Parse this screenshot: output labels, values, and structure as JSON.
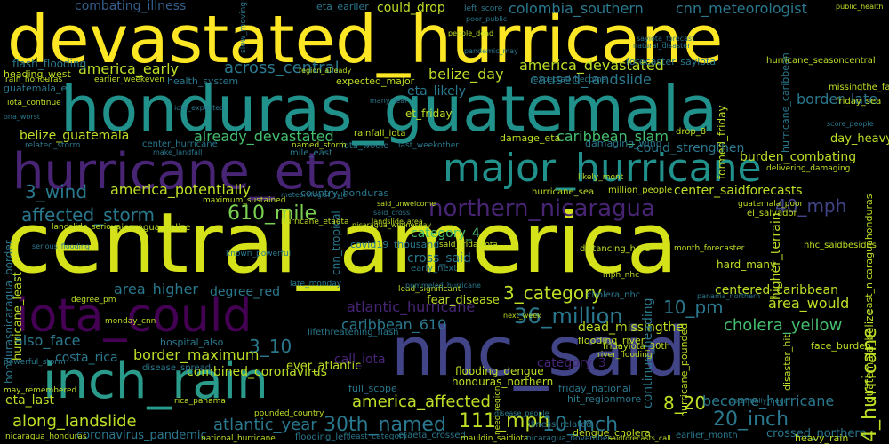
{
  "colors": {
    "background": "#000000",
    "yellow": "#fde725",
    "lime": "#bddf26",
    "green": "#7ad151",
    "mint": "#44bf70",
    "teal": "#22a884",
    "cyan": "#21918c",
    "blue": "#2a788e",
    "indigo": "#355f8d",
    "slate": "#414487",
    "purple": "#482475",
    "violet": "#440154"
  },
  "words": {
    "central_america": "central_america",
    "devastated_hurricane": "devastated_hurricane",
    "honduras_guatemala": "honduras_guatemala",
    "nhc_said": "nhc_said",
    "hurricane_eta": "hurricane_eta",
    "iota_could": "iota_could",
    "inch_rain": "inch_rain",
    "major_hurricane": "major_hurricane",
    "northern_nicaragua": "northern_nicaragua",
    "36_million": "36_million",
    "30th_named": "30th_named",
    "111_mph": "111_mph",
    "10_inch": "10_inch",
    "20_inch": "20_inch",
    "610_mile": "610_mile",
    "40_mph": "40_mph",
    "10_pm": "10_pm",
    "8_20": "8_20",
    "3_10": "3_10",
    "3_wind": "3_wind",
    "3_category": "3_category",
    "4_hurricane": "4_hurricane",
    "affected_storm": "affected_storm",
    "along_landslide": "along_landslide",
    "america_affected": "america_affected",
    "atlantic_year": "atlantic_year",
    "atlantic_hurricane": "atlantic_hurricane",
    "area_higher": "area_higher",
    "area_would": "area_would",
    "also_face": "also_face",
    "already_devastated": "already_devastated",
    "america_potentially": "america_potentially",
    "america_early": "america_early",
    "america_devastated": "america_devastated",
    "across_central": "across_central",
    "belize_day": "belize_day",
    "belize_guatemala": "belize_guatemala",
    "border_late": "border_late",
    "border_maximum": "border_maximum",
    "burden_combating": "burden_combating",
    "become_hurricane": "become_hurricane",
    "caused_landslide": "caused_landslide",
    "caribbean_slam": "caribbean_slam",
    "caribbean_610": "caribbean_610",
    "center_saidforecasts": "center_saidforecasts",
    "centered_caribbean": "centered_caribbean",
    "cholera_yellow": "cholera_yellow",
    "colombia_southern": "colombia_southern",
    "cnn_meteorologist": "cnn_meteorologist",
    "combating_illness": "combating_illness",
    "could_drop": "could_drop",
    "could_strengthen": "could_strengthen",
    "category_4": "category_4",
    "category_3": "category_3",
    "call_iota": "call_iota",
    "costa_rica": "costa_rica",
    "combined_coronavirus": "combined_coronavirus",
    "coronavirus_pandemic": "coronavirus_pandemic",
    "cross_said": "cross_said",
    "cnn_tropical": "cnn_tropical",
    "crossed_northern": "crossed_northern",
    "degree_red": "degree_red",
    "dead_missingthe": "dead_missingthe",
    "day_heavy": "day_heavy",
    "eta_last": "eta_last",
    "eta_likely": "eta_likely",
    "et_friday": "et_friday",
    "ever_atlantic": "ever_atlantic",
    "fear_disease": "fear_disease",
    "flash_flooding": "flash_flooding",
    "heading_west": "heading_west",
    "hard_many": "hard_many",
    "heavy_rain": "heavy_rain",
    "hospital_also": "hospital_also",
    "honduras_northern": "honduras_northern",
    "flooding_dengue": "flooding_dengue",
    "full_scope": "full_scope",
    "friday_national": "friday_national",
    "hit_regionmore": "hit_regionmore",
    "continue_heading": "continue_heading",
    "higher_terrain": "higher_terrain",
    "formed_friday": "formed_friday",
    "guatemala_belize": "guatemala_belize",
    "guatemala_el": "guatemala_el",
    "face_burden": "face_burden",
    "hurricane_caribbean": "hurricane_caribbean",
    "hurricane_seasoncentral": "hurricane_seasoncentral",
    "hondurasnicaragua_border": "hondurasnicaragua_border",
    "hurricane_least": "hurricane_least",
    "hurricane_pounded": "hurricane_pounded",
    "disaster_hit": "disaster_hit",
    "friday_sea": "friday_sea",
    "missingthe_fall": "missingthe_fall",
    "east_nicaraguahonduras": "east_nicaraguahonduras",
    "expected_major": "expected_major",
    "expected_become": "expected_become",
    "health_system": "health_system",
    "damage_eta": "damage_eta",
    "damaging_wind": "damaging_wind",
    "drop_8": "drop_8",
    "delivering_damaging": "delivering_damaging",
    "country_honduras": "country_honduras",
    "covid19_thousand": "covid19_thousand",
    "million_people": "million_people",
    "nhc_saidbesides": "nhc_saidbesides",
    "distancing_hard": "distancing_hard",
    "rainfall_iota": "rainfall_iota",
    "iota_would": "iota_would",
    "iota_continue": "iota_continue",
    "mile_east": "mile_east",
    "named_storm": "named_storm",
    "last_weekother": "last_weekother",
    "early_next": "early_next",
    "late_monday": "late_monday",
    "degree_pm": "degree_pm",
    "cholera_nhc": "cholera_nhc",
    "dengue_cholera": "dengue_cholera",
    "flooding_river": "flooding_river",
    "fridayiota_30th": "fridayiota_30th",
    "river_flooding": "river_flooding",
    "national_hurricane": "national_hurricane",
    "least_category": "least_category",
    "illness_related": "illness_related",
    "earlier_month": "earlier_month",
    "pounded_country": "pounded_country",
    "flooding_left": "flooding_left",
    "etaeta_crossed": "etaeta_crossed",
    "mauldin_saidiota": "mauldin_saidiota",
    "nicaragua_november": "nicaragua_november",
    "hurricane_sea": "hurricane_sea",
    "likely_mont": "likely_mont",
    "center_hurricane": "center_hurricane",
    "maximum_sustained": "maximum_sustained",
    "landslide_serious": "landslide_serious",
    "nicaragua_belize": "nicaragua_belize",
    "hurricane_etaeta": "hurricane_etaeta",
    "said_unwelcome": "said_unwelcome",
    "said_fridayiota": "said_fridayiota",
    "landslide_area": "landslide_area",
    "known_powerful": "known_powerful",
    "lead_significant": "lead_significant",
    "pummeled_hurricane": "pummeled_hurricane",
    "monday_cnn": "monday_cnn",
    "lifethreatening_flash": "lifethreatening_flash",
    "disease_spread": "disease_spread",
    "powerful_storm": "powerful_storm",
    "may_remembered": "may_remembered",
    "rain_honduras": "rain_honduras",
    "nicaragua_honduras": "nicaragua_honduras",
    "related_storm": "related_storm",
    "earlier_weekeven": "earlier_weekeven",
    "public_health": "public_health",
    "left_score": "left_score",
    "poor_public": "poor_public",
    "people_dead": "people_dead",
    "pandemic_may": "pandemic_may",
    "eta_earlier": "eta_earlier",
    "many_fear": "many_fear",
    "month_forecaster": "month_forecaster",
    "forecaster_sayiota": "forecaster_sayiota",
    "panama_northern": "panama_northern",
    "next_week": "next_week",
    "mph_nhc": "mph_nhc",
    "guatemala_poor": "guatemala_poor",
    "el_salvador": "el_salvador",
    "saidforecasts_call": "saidforecasts_call",
    "rica_panama": "rica_panama",
    "nicaragua_wednesday": "nicaragua_wednesday",
    "potentially_near": "potentially_near",
    "score_people": "score_people",
    "natural_disaster": "natural_disaster",
    "sayiota_forecast": "sayiota_forecast",
    "make_landfall": "make_landfall",
    "region_already": "region_already",
    "meteorologist_tyler": "meteorologist_tyler",
    "serious_flooding": "serious_flooding",
    "ona_worst": "ona_worst",
    "said_cross": "said_cross",
    "iota_expected": "iota_expected",
    "disease_people": "disease_people",
    "slow_moving": "slow_moving",
    "need_region": "need_region"
  }
}
